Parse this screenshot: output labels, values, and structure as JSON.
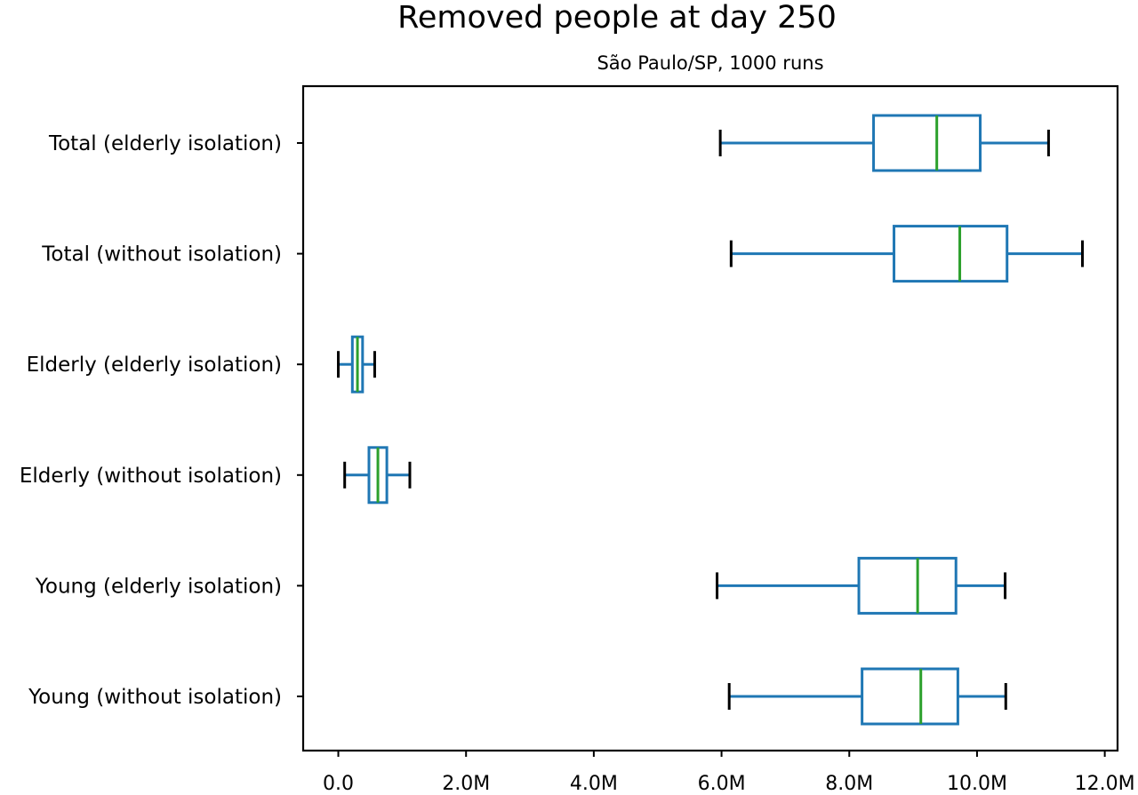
{
  "chart_data": {
    "type": "boxplot",
    "orientation": "horizontal",
    "title": "Removed people at day 250",
    "subtitle": "São Paulo/SP, 1000 runs",
    "xlabel": "",
    "ylabel": "",
    "xlim": [
      -0.55,
      12.2
    ],
    "xticks": [
      0,
      2,
      4,
      6,
      8,
      10,
      12
    ],
    "xtick_labels": [
      "0.0",
      "2.0M",
      "4.0M",
      "6.0M",
      "8.0M",
      "10.0M",
      "12.0M"
    ],
    "grid": false,
    "categories": [
      "Total (elderly isolation)",
      "Total (without isolation)",
      "Elderly (elderly isolation)",
      "Elderly (without isolation)",
      "Young (elderly isolation)",
      "Young (without isolation)"
    ],
    "boxes": [
      {
        "label": "Total (elderly isolation)",
        "whisker_low": 5.98,
        "q1": 8.38,
        "median": 9.37,
        "q3": 10.05,
        "whisker_high": 11.12
      },
      {
        "label": "Total (without isolation)",
        "whisker_low": 6.15,
        "q1": 8.7,
        "median": 9.73,
        "q3": 10.47,
        "whisker_high": 11.65
      },
      {
        "label": "Elderly (elderly isolation)",
        "whisker_low": 0.0,
        "q1": 0.22,
        "median": 0.3,
        "q3": 0.38,
        "whisker_high": 0.57
      },
      {
        "label": "Elderly (without isolation)",
        "whisker_low": 0.1,
        "q1": 0.48,
        "median": 0.62,
        "q3": 0.76,
        "whisker_high": 1.12
      },
      {
        "label": "Young (elderly isolation)",
        "whisker_low": 5.93,
        "q1": 8.15,
        "median": 9.07,
        "q3": 9.67,
        "whisker_high": 10.44
      },
      {
        "label": "Young (without isolation)",
        "whisker_low": 6.12,
        "q1": 8.2,
        "median": 9.12,
        "q3": 9.7,
        "whisker_high": 10.45
      }
    ],
    "units": "millions",
    "colors": {
      "box": "#1f77b4",
      "median": "#2ca02c",
      "cap": "#000000",
      "axes": "#000000"
    }
  }
}
